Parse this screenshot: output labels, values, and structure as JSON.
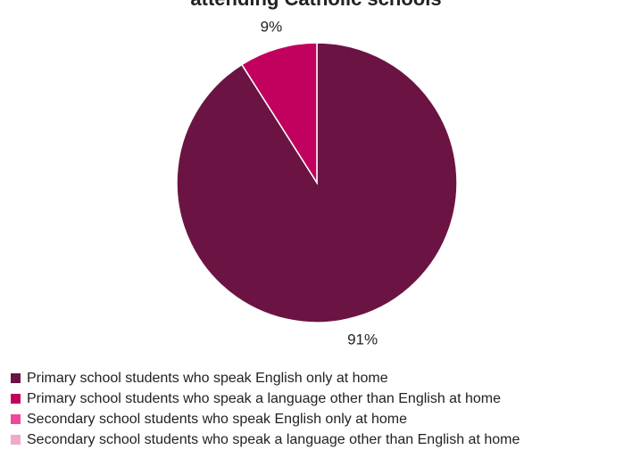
{
  "chart_data": {
    "type": "pie",
    "title": "attending Catholic schools",
    "slices": [
      {
        "label": "Primary school students who speak English only at home",
        "value": 91,
        "data_label": "91%",
        "color": "#6b1443"
      },
      {
        "label": "Primary school students who speak a language other than English at home",
        "value": 9,
        "data_label": "9%",
        "color": "#c2005e"
      },
      {
        "label": "Secondary school students who speak English only at home",
        "value": 0,
        "data_label": "",
        "color": "#f0489a"
      },
      {
        "label": "Secondary school students who speak a language other than English at home",
        "value": 0,
        "data_label": "",
        "color": "#f0a8cc"
      }
    ],
    "legend_position": "bottom-left",
    "start_angle_deg": 0,
    "direction": "clockwise"
  }
}
